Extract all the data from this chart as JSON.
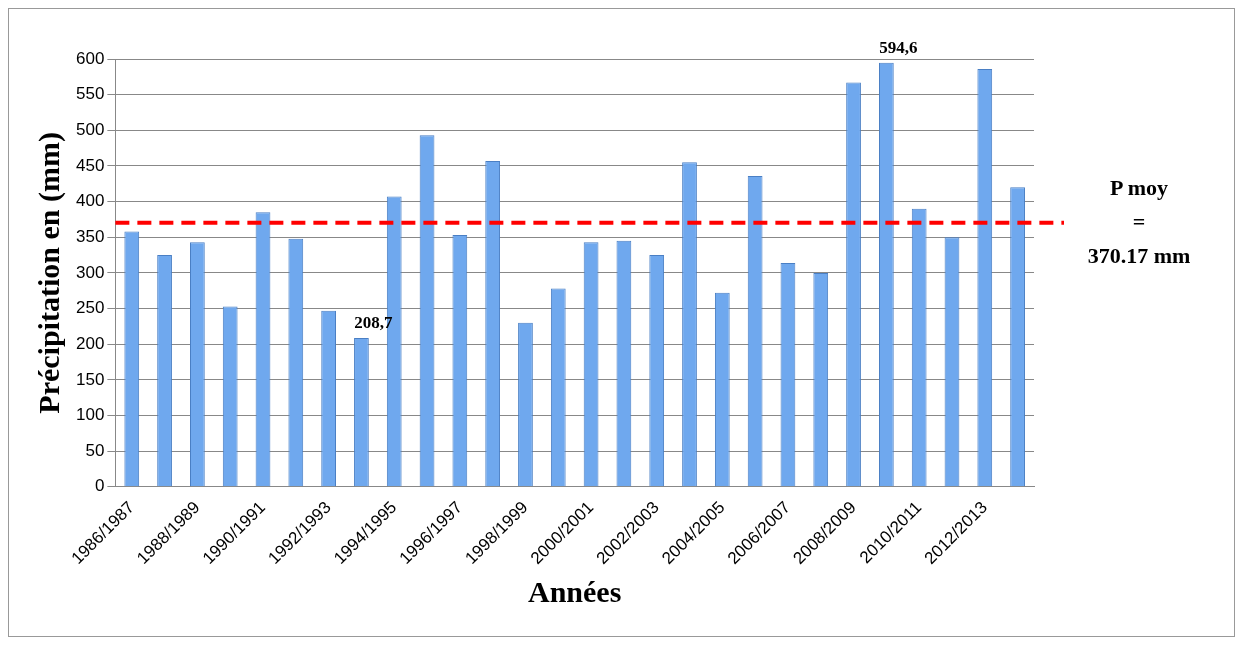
{
  "chart_data": {
    "type": "bar",
    "xlabel": "Années",
    "ylabel": "Précipitation en (mm)",
    "categories": [
      "1986/1987",
      null,
      "1988/1989",
      null,
      "1990/1991",
      null,
      "1992/1993",
      null,
      "1994/1995",
      null,
      "1996/1997",
      null,
      "1998/1999",
      null,
      "2000/2001",
      null,
      "2002/2003",
      null,
      "2004/2005",
      null,
      "2006/2007",
      null,
      "2008/2009",
      null,
      "2010/2011",
      null,
      "2012/2013",
      null
    ],
    "values": [
      358,
      325,
      343,
      253,
      385,
      348,
      247,
      208.7,
      407,
      493,
      353,
      457,
      230,
      278,
      343,
      345,
      325,
      455,
      272,
      436,
      314,
      300,
      567,
      594.6,
      390,
      350,
      586,
      420
    ],
    "value_labels": [
      null,
      null,
      null,
      null,
      null,
      null,
      null,
      "208,7",
      null,
      null,
      null,
      null,
      null,
      null,
      null,
      null,
      null,
      null,
      null,
      null,
      null,
      null,
      null,
      "594,6",
      null,
      null,
      null,
      null
    ],
    "color": "#6fa8ee",
    "ylim": [
      0,
      600
    ],
    "yticks": [
      0,
      50,
      100,
      150,
      200,
      250,
      300,
      350,
      400,
      450,
      500,
      550,
      600
    ],
    "grid": "y",
    "ref_lines": [
      {
        "axis": "y",
        "value": 370.17,
        "label": "P moy\n=\n370.17 mm",
        "color": "#ff0000",
        "line_style": "dashed"
      }
    ]
  }
}
